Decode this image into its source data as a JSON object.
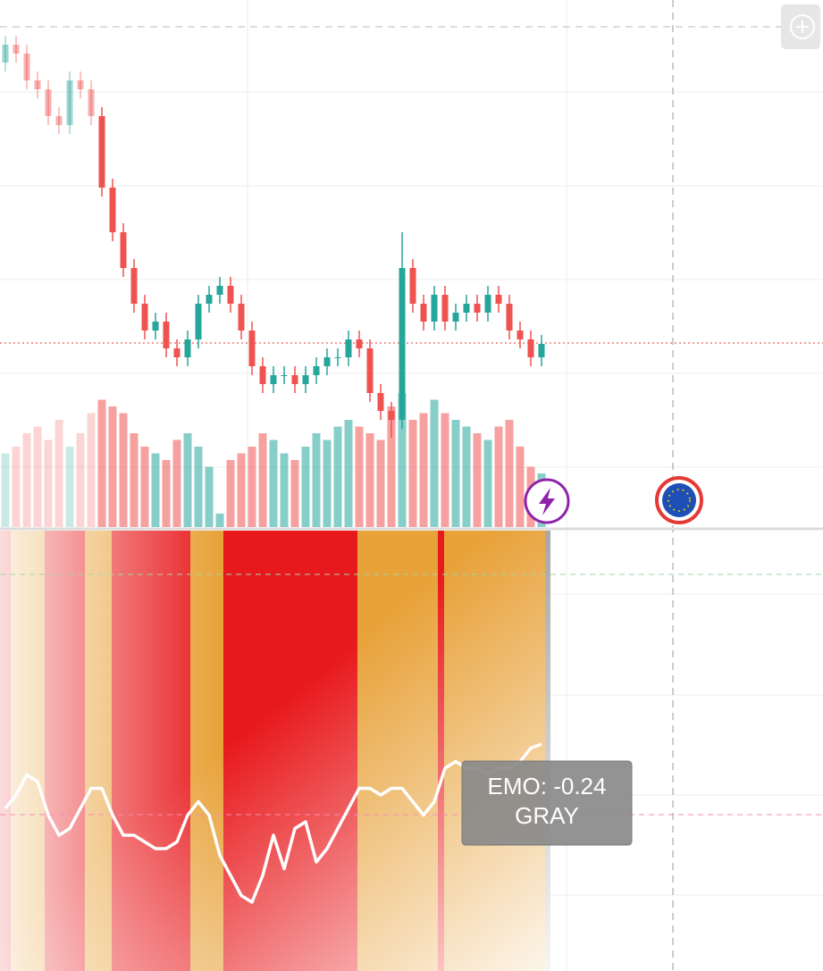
{
  "chart_data": {
    "type": "candlestick",
    "open": [
      90,
      94,
      92,
      86,
      84,
      78,
      76,
      86,
      84,
      78,
      62,
      52,
      44,
      36,
      30,
      32,
      26,
      24,
      28,
      36,
      38,
      40,
      36,
      30,
      22,
      18,
      20,
      20,
      18,
      20,
      22,
      24,
      24,
      28,
      26,
      16,
      12,
      10,
      44,
      36,
      32,
      38,
      32,
      34,
      36,
      34,
      38,
      36,
      30,
      28,
      24
    ],
    "high": [
      96,
      96,
      94,
      88,
      86,
      80,
      88,
      88,
      86,
      80,
      64,
      54,
      46,
      38,
      34,
      34,
      28,
      30,
      38,
      40,
      42,
      42,
      38,
      32,
      24,
      22,
      22,
      22,
      22,
      24,
      26,
      26,
      30,
      30,
      28,
      18,
      14,
      52,
      46,
      38,
      40,
      40,
      36,
      38,
      38,
      40,
      40,
      38,
      32,
      30,
      29
    ],
    "low": [
      88,
      90,
      84,
      82,
      76,
      74,
      74,
      82,
      76,
      60,
      50,
      42,
      34,
      28,
      28,
      24,
      22,
      22,
      26,
      34,
      36,
      34,
      28,
      20,
      16,
      16,
      18,
      16,
      16,
      18,
      20,
      22,
      22,
      24,
      14,
      10,
      6,
      8,
      34,
      30,
      30,
      30,
      30,
      32,
      32,
      32,
      34,
      28,
      26,
      22,
      22
    ],
    "close": [
      94,
      92,
      86,
      84,
      78,
      76,
      86,
      84,
      78,
      62,
      52,
      44,
      36,
      30,
      32,
      26,
      24,
      28,
      36,
      38,
      40,
      36,
      30,
      22,
      18,
      20,
      20,
      18,
      20,
      22,
      24,
      24,
      28,
      26,
      16,
      12,
      10,
      44,
      36,
      32,
      38,
      32,
      34,
      36,
      34,
      38,
      36,
      30,
      28,
      24,
      27
    ],
    "ylim": [
      0,
      100
    ],
    "up_color": "#26a69a",
    "down_color": "#ef5350",
    "volume": [
      55,
      60,
      70,
      75,
      65,
      80,
      60,
      70,
      85,
      95,
      90,
      85,
      70,
      60,
      55,
      50,
      65,
      70,
      60,
      45,
      10,
      50,
      55,
      60,
      70,
      65,
      55,
      50,
      60,
      70,
      65,
      75,
      80,
      75,
      70,
      65,
      90,
      100,
      80,
      85,
      95,
      85,
      80,
      75,
      70,
      65,
      75,
      80,
      60,
      45,
      40
    ],
    "volume_lim": [
      0,
      100
    ],
    "emo": {
      "name": "EMO:",
      "state": "GRAY",
      "color": "#ffffff",
      "values": [
        -1.2,
        -1.0,
        -0.7,
        -0.8,
        -1.3,
        -1.6,
        -1.5,
        -1.2,
        -0.9,
        -0.9,
        -1.3,
        -1.6,
        -1.6,
        -1.7,
        -1.8,
        -1.8,
        -1.7,
        -1.3,
        -1.1,
        -1.3,
        -1.9,
        -2.2,
        -2.5,
        -2.6,
        -2.2,
        -1.6,
        -2.1,
        -1.5,
        -1.4,
        -2.0,
        -1.8,
        -1.5,
        -1.2,
        -0.9,
        -0.9,
        -1.0,
        -0.9,
        -0.9,
        -1.1,
        -1.3,
        -1.1,
        -0.6,
        -0.5,
        -0.6,
        -0.6,
        -0.7,
        -0.6,
        -0.6,
        -0.5,
        -0.3,
        -0.24
      ],
      "ylim": [
        -3,
        0
      ]
    }
  }
}
